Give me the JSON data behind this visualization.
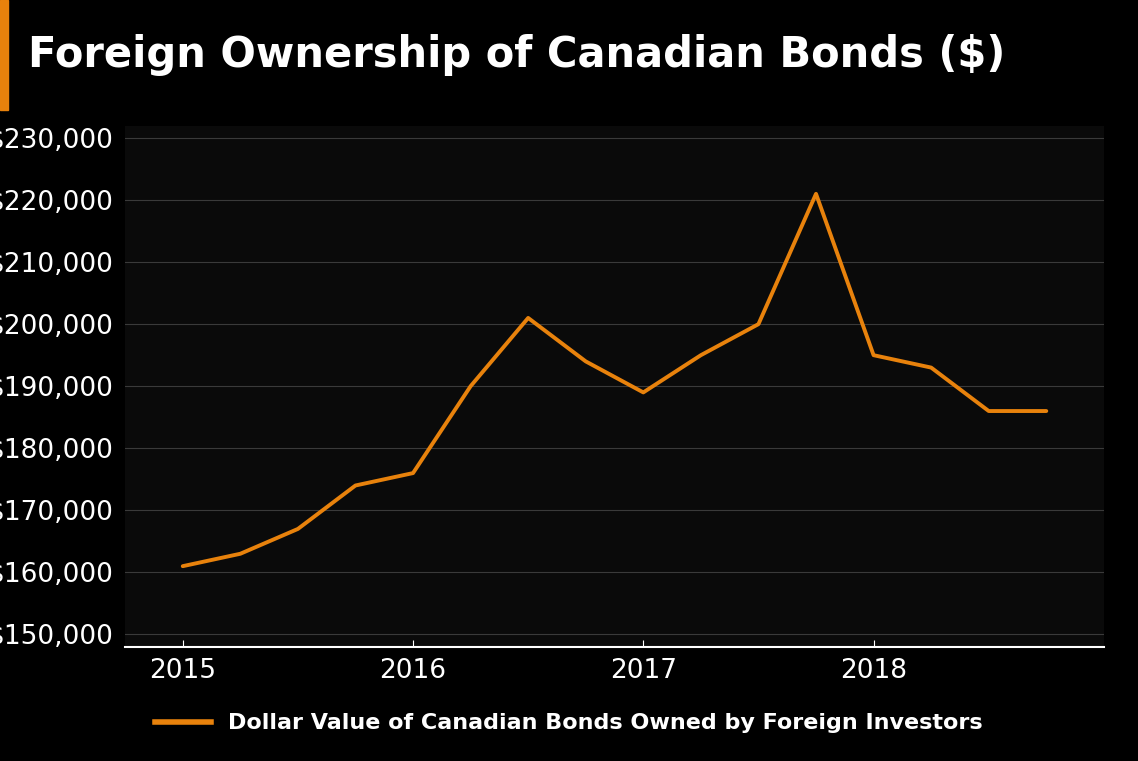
{
  "title": "Foreign Ownership of Canadian Bonds ($)",
  "background_color": "#000000",
  "plot_background_color": "#0a0a0a",
  "line_color": "#e8820c",
  "line_width": 2.8,
  "grid_color": "#3a3a3a",
  "text_color": "#ffffff",
  "legend_label": "Dollar Value of Canadian Bonds Owned by Foreign Investors",
  "x_values": [
    2015.0,
    2015.25,
    2015.5,
    2015.75,
    2016.0,
    2016.25,
    2016.5,
    2016.75,
    2017.0,
    2017.25,
    2017.5,
    2017.75,
    2018.0,
    2018.25,
    2018.5,
    2018.75
  ],
  "y_values": [
    161000,
    163000,
    167000,
    174000,
    176000,
    190000,
    201000,
    194000,
    189000,
    195000,
    200000,
    221000,
    195000,
    193000,
    186000,
    186000
  ],
  "ylim": [
    148000,
    232000
  ],
  "xlim": [
    2014.75,
    2019.0
  ],
  "yticks": [
    150000,
    160000,
    170000,
    180000,
    190000,
    200000,
    210000,
    220000,
    230000
  ],
  "xticks": [
    2015,
    2016,
    2017,
    2018
  ],
  "title_fontsize": 30,
  "tick_fontsize": 19,
  "legend_fontsize": 16,
  "title_left_bar_color": "#e8820c",
  "title_bar_bg": "#1a1a1a"
}
